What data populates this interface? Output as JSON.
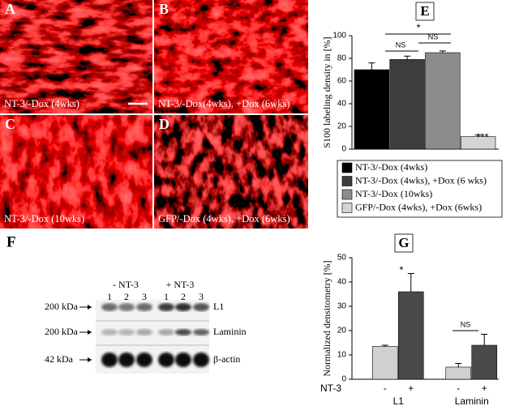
{
  "panels": [
    {
      "letter": "A",
      "caption": "NT-3/-Dox (4wks)"
    },
    {
      "letter": "B",
      "caption": "NT-3/-Dox(4wks), +Dox (6wks)"
    },
    {
      "letter": "C",
      "caption": "NT-3/-Dox (10wks)"
    },
    {
      "letter": "D",
      "caption": "GFP/-Dox (4wks), +Dox (6wks)"
    }
  ],
  "blot": {
    "letter": "F",
    "groups": [
      "- NT-3",
      "+ NT-3"
    ],
    "lanes": [
      "1",
      "2",
      "3",
      "1",
      "2",
      "3"
    ],
    "rows": [
      {
        "size": "200 kDa",
        "label": "L1"
      },
      {
        "size": "200 kDa",
        "label": "Laminin"
      },
      {
        "size": "42  kDa",
        "label": "β-actin"
      }
    ]
  },
  "chart_data": [
    {
      "type": "bar",
      "letter": "E",
      "y_label": "S100 labeling density in [%]",
      "ylim": [
        0,
        100
      ],
      "yticks": [
        0,
        20,
        40,
        60,
        80,
        100
      ],
      "series": [
        {
          "name": "NT-3/-Dox (4wks)",
          "color": "#000000",
          "values": [
            70
          ],
          "errors": [
            6
          ]
        },
        {
          "name": "NT-3/-Dox (4wks), +Dox (6 wks)",
          "color": "#3d3d3d",
          "values": [
            79
          ],
          "errors": [
            3
          ]
        },
        {
          "name": "NT-3/-Dox (10wks)",
          "color": "#8c8c8c",
          "values": [
            85
          ],
          "errors": [
            1.5
          ]
        },
        {
          "name": "GFP/-Dox (4wks), +Dox (6wks)",
          "color": "#d4d4d4",
          "values": [
            11
          ],
          "errors": [
            1.5
          ]
        }
      ],
      "annotations": [
        "*",
        "NS",
        "NS",
        "***"
      ]
    },
    {
      "type": "bar",
      "letter": "G",
      "y_label": "Normalized densitometry [%]",
      "x_label": "NT-3",
      "categories": [
        "L1",
        "Laminin"
      ],
      "ylim": [
        0,
        50
      ],
      "yticks": [
        0,
        10,
        20,
        30,
        40,
        50
      ],
      "series": [
        {
          "name": "-",
          "color": "#d0d0d0",
          "values": [
            13.5,
            5
          ],
          "errors": [
            0.5,
            1.5
          ]
        },
        {
          "name": "+",
          "color": "#4a4a4a",
          "values": [
            36,
            14
          ],
          "errors": [
            7.5,
            4.5
          ]
        }
      ],
      "annotations": [
        "*",
        "NS"
      ]
    }
  ]
}
